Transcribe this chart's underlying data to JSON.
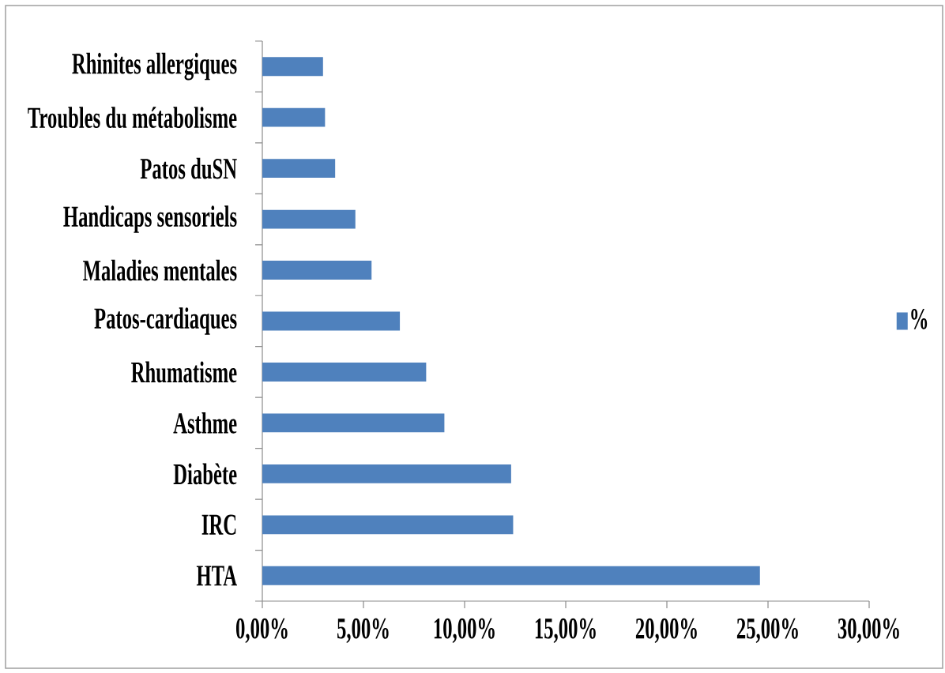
{
  "chart_data": {
    "type": "bar",
    "orientation": "horizontal",
    "categories": [
      "Rhinites allergiques",
      "Troubles du métabolisme",
      "Patos duSN",
      "Handicaps sensoriels",
      "Maladies mentales",
      "Patos-cardiaques",
      "Rhumatisme",
      "Asthme",
      "Diabète",
      "IRC",
      "HTA"
    ],
    "series": [
      {
        "name": "%",
        "color": "#4f81bd",
        "values": [
          3.0,
          3.1,
          3.6,
          4.6,
          5.4,
          6.8,
          8.1,
          9.0,
          12.3,
          12.4,
          24.6
        ]
      }
    ],
    "xlim": [
      0,
      30
    ],
    "xticks": [
      {
        "value": 0,
        "label": "0,00%"
      },
      {
        "value": 5,
        "label": "5,00%"
      },
      {
        "value": 10,
        "label": "10,00%"
      },
      {
        "value": 15,
        "label": "15,00%"
      },
      {
        "value": 20,
        "label": "20,00%"
      },
      {
        "value": 25,
        "label": "25,00%"
      },
      {
        "value": 30,
        "label": "30,00%"
      }
    ],
    "legend": "right"
  }
}
